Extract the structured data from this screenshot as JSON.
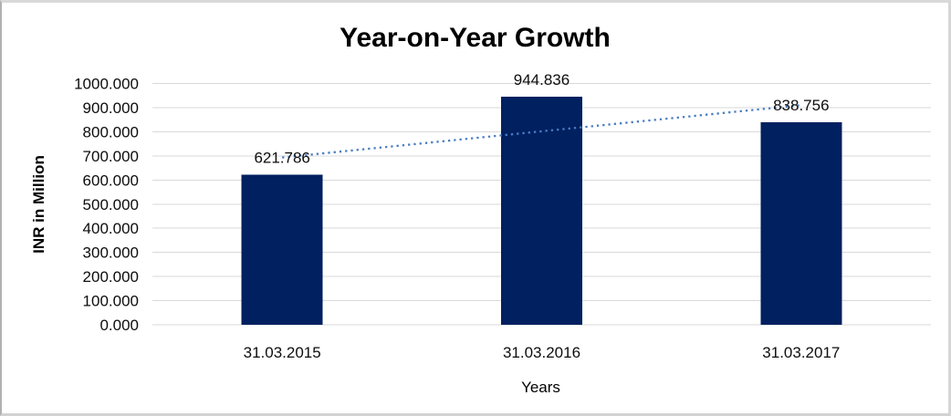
{
  "chart_data": {
    "type": "bar",
    "title": "Year-on-Year Growth",
    "xlabel": "Years",
    "ylabel": "INR in Million",
    "categories": [
      "31.03.2015",
      "31.03.2016",
      "31.03.2017"
    ],
    "values": [
      621.786,
      944.836,
      838.756
    ],
    "value_labels": [
      "621.786",
      "944.836",
      "838.756"
    ],
    "ylim": [
      0,
      1000
    ],
    "ytick_step": 100,
    "ytick_labels": [
      "0.000",
      "100.000",
      "200.000",
      "300.000",
      "400.000",
      "500.000",
      "600.000",
      "700.000",
      "800.000",
      "900.000",
      "1000.000"
    ],
    "grid": true,
    "legend": "none",
    "trendline": {
      "type": "linear",
      "style": "dotted",
      "color": "#4a7ec4"
    },
    "colors": {
      "bar": "#002060",
      "gridline": "#d9d9d9",
      "axis_text": "#0d0d0d",
      "title_text": "#000000",
      "background": "#ffffff"
    }
  }
}
